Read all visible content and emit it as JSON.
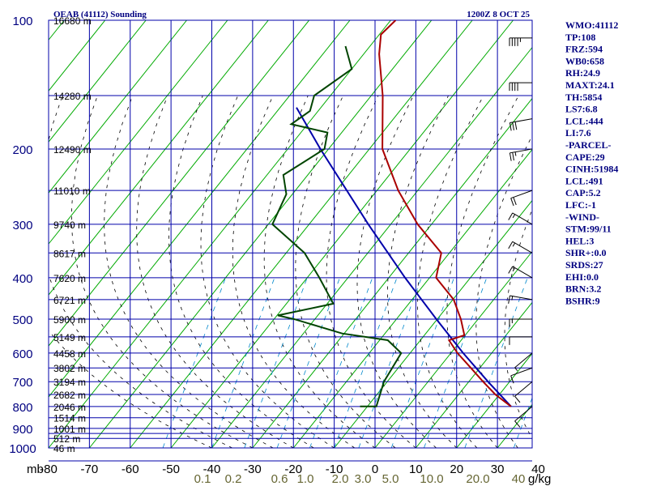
{
  "header": {
    "title": "OEAB (41112) Sounding",
    "time": "1200Z  8 OCT 25"
  },
  "stats": [
    "WMO:41112",
    "TP:108",
    "FRZ:594",
    "WB0:658",
    "RH:24.9",
    "MAXT:24.1",
    "TH:5854",
    "LS7:6.8",
    "LCL:444",
    "LI:7.6",
    "-PARCEL-",
    "CAPE:29",
    "CINH:51984",
    "LCL:491",
    "CAP:5.2",
    "LFC:-1",
    "-WIND-",
    "STM:99/11",
    "HEL:3",
    "SHR+:0.0",
    "SRDS:27",
    "EHI:0.0",
    "BRN:3.2",
    "BSHR:9"
  ],
  "colors": {
    "grid": "#0000aa",
    "dry_adiabat": "#00aa00",
    "moist_adiabat": "#000000",
    "mixing_ratio": "#0088cc",
    "temperature": "#aa0000",
    "dewpoint": "#004400",
    "parcel": "#0000aa",
    "label_blue": "#000080",
    "mixing_label": "#666633"
  },
  "chart_data": {
    "type": "skew-t",
    "pressure_unit": "mb",
    "mixing_unit": "g/kg",
    "pressure_levels": [
      100,
      200,
      300,
      400,
      500,
      600,
      700,
      800,
      900,
      1000
    ],
    "isobar_levels": [
      100,
      150,
      200,
      250,
      300,
      350,
      400,
      450,
      500,
      550,
      600,
      650,
      700,
      750,
      800,
      850,
      900,
      925,
      950,
      1000
    ],
    "height_labels": [
      {
        "p": 100,
        "label": "16680 m"
      },
      {
        "p": 150,
        "label": "14280 m"
      },
      {
        "p": 200,
        "label": "12490 m"
      },
      {
        "p": 250,
        "label": "11010 m"
      },
      {
        "p": 300,
        "label": "9740 m"
      },
      {
        "p": 350,
        "label": "8617 m"
      },
      {
        "p": 400,
        "label": "7620 m"
      },
      {
        "p": 450,
        "label": "6721 m"
      },
      {
        "p": 500,
        "label": "5900 m"
      },
      {
        "p": 550,
        "label": "5149 m"
      },
      {
        "p": 600,
        "label": "4458 m"
      },
      {
        "p": 650,
        "label": "3802 m"
      },
      {
        "p": 700,
        "label": "3194 m"
      },
      {
        "p": 750,
        "label": "2682 m"
      },
      {
        "p": 800,
        "label": "2046 m"
      },
      {
        "p": 850,
        "label": "1514 m"
      },
      {
        "p": 900,
        "label": "1001 m"
      },
      {
        "p": 950,
        "label": "512 m"
      },
      {
        "p": 1000,
        "label": "46 m"
      }
    ],
    "temperature_ticks": [
      -80,
      -70,
      -60,
      -50,
      -40,
      -30,
      -20,
      -10,
      0,
      10,
      20,
      30,
      40
    ],
    "temperature_tick_labels": [
      "-80",
      "-70",
      "-60",
      "-50",
      "-40",
      "-30",
      "-20",
      "-10",
      "0",
      "10",
      "20",
      "30",
      "40"
    ],
    "mixing_ratio_labels": [
      "0.1",
      "0.2",
      "0.6",
      "1.0",
      "2.0",
      "3.0",
      "5.0",
      "10.0",
      "20.0",
      "40"
    ],
    "temperature_profile": [
      {
        "p": 800,
        "t": 25.2
      },
      {
        "p": 750,
        "t": 19.0
      },
      {
        "p": 700,
        "t": 13.5
      },
      {
        "p": 650,
        "t": 7.8
      },
      {
        "p": 600,
        "t": 1.6
      },
      {
        "p": 560,
        "t": -3.0
      },
      {
        "p": 545,
        "t": -0.2
      },
      {
        "p": 500,
        "t": -4.2
      },
      {
        "p": 450,
        "t": -9.8
      },
      {
        "p": 400,
        "t": -18.4
      },
      {
        "p": 350,
        "t": -22.0
      },
      {
        "p": 300,
        "t": -33.4
      },
      {
        "p": 250,
        "t": -44.8
      },
      {
        "p": 200,
        "t": -56.8
      },
      {
        "p": 150,
        "t": -67.2
      },
      {
        "p": 120,
        "t": -76.2
      },
      {
        "p": 108,
        "t": -79.6
      },
      {
        "p": 100,
        "t": -78.8
      }
    ],
    "dewpoint_profile": [
      {
        "p": 800,
        "t": -11.8
      },
      {
        "p": 800,
        "t": -7.8
      },
      {
        "p": 700,
        "t": -10.8
      },
      {
        "p": 600,
        "t": -12.2
      },
      {
        "p": 560,
        "t": -18.0
      },
      {
        "p": 540,
        "t": -30.5
      },
      {
        "p": 500,
        "t": -45.0
      },
      {
        "p": 490,
        "t": -49.8
      },
      {
        "p": 460,
        "t": -38.5
      },
      {
        "p": 400,
        "t": -47.0
      },
      {
        "p": 350,
        "t": -55.5
      },
      {
        "p": 300,
        "t": -69.0
      },
      {
        "p": 255,
        "t": -71.5
      },
      {
        "p": 230,
        "t": -76.0
      },
      {
        "p": 200,
        "t": -71.0
      },
      {
        "p": 183,
        "t": -73.5
      },
      {
        "p": 175,
        "t": -84.0
      },
      {
        "p": 163,
        "t": -82.0
      },
      {
        "p": 150,
        "t": -84.0
      },
      {
        "p": 130,
        "t": -80.0
      },
      {
        "p": 115,
        "t": -86.0
      }
    ],
    "parcel_profile": [
      {
        "p": 800,
        "t": 25.2
      },
      {
        "p": 700,
        "t": 14.7
      },
      {
        "p": 600,
        "t": 3.0
      },
      {
        "p": 500,
        "t": -10.2
      },
      {
        "p": 400,
        "t": -26.0
      },
      {
        "p": 300,
        "t": -45.5
      },
      {
        "p": 200,
        "t": -72.0
      },
      {
        "p": 160,
        "t": -86.0
      }
    ],
    "wind_barbs": [
      {
        "p": 110,
        "dir": 270,
        "spd": 45
      },
      {
        "p": 140,
        "dir": 270,
        "spd": 40
      },
      {
        "p": 170,
        "dir": 260,
        "spd": 30
      },
      {
        "p": 200,
        "dir": 260,
        "spd": 25
      },
      {
        "p": 250,
        "dir": 250,
        "spd": 20
      },
      {
        "p": 300,
        "dir": 300,
        "spd": 15
      },
      {
        "p": 350,
        "dir": 300,
        "spd": 15
      },
      {
        "p": 400,
        "dir": 300,
        "spd": 15
      },
      {
        "p": 450,
        "dir": 280,
        "spd": 15
      },
      {
        "p": 500,
        "dir": 270,
        "spd": 15
      },
      {
        "p": 550,
        "dir": 270,
        "spd": 10
      },
      {
        "p": 600,
        "dir": 230,
        "spd": 5
      },
      {
        "p": 650,
        "dir": 250,
        "spd": 10
      },
      {
        "p": 700,
        "dir": 230,
        "spd": 10
      },
      {
        "p": 800,
        "dir": 230,
        "spd": 10
      }
    ]
  }
}
